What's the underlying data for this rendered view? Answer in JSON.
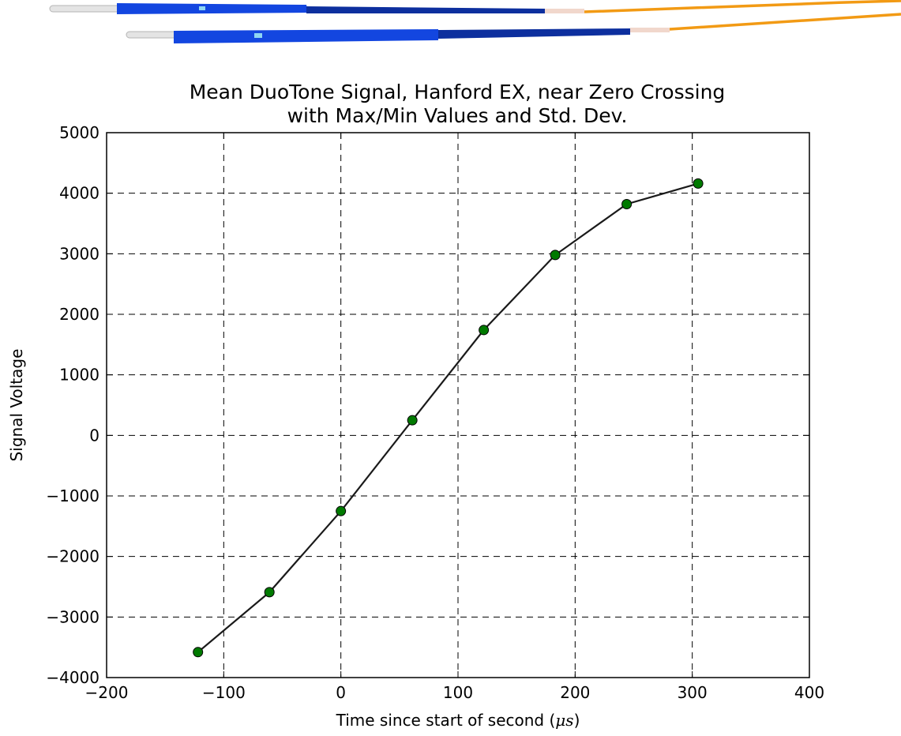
{
  "chart_data": {
    "type": "line",
    "title_line1": "Mean DuoTone Signal, Hanford EX, near Zero Crossing",
    "title_line2": "with Max/Min Values and Std. Dev.",
    "xlabel": "Time since start of second (",
    "xlabel_unit": "μs",
    "xlabel_close": ")",
    "ylabel": "Signal Voltage",
    "xlim": [
      -200,
      400
    ],
    "ylim": [
      -4000,
      5000
    ],
    "xticks": [
      -200,
      -100,
      0,
      100,
      200,
      300,
      400
    ],
    "yticks": [
      -4000,
      -3000,
      -2000,
      -1000,
      0,
      1000,
      2000,
      3000,
      4000,
      5000
    ],
    "grid": true,
    "series": [
      {
        "x": [
          -122,
          -61,
          0,
          61,
          122,
          183,
          244,
          305
        ],
        "y": [
          -3580,
          -2590,
          -1250,
          250,
          1740,
          2980,
          3820,
          4160
        ],
        "line_color": "#1a1a1a",
        "marker_color": "#007a00"
      }
    ]
  },
  "decoration": {
    "cable_blue": "#1346e0",
    "cable_orange": "#f29a14"
  }
}
